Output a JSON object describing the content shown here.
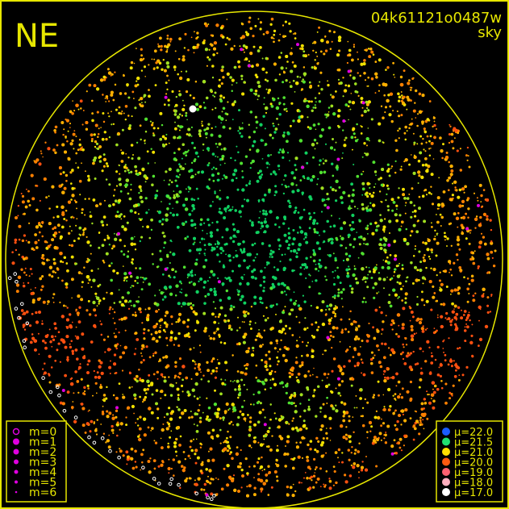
{
  "corner_label": "NE",
  "image_id": "04k61121o0487w",
  "image_type": "sky",
  "frame_color": "#e6e600",
  "magnitude_legend": {
    "marker_color": "#e000e0",
    "items": [
      "m=0",
      "m=1",
      "m=2",
      "m=3",
      "m=4",
      "m=5",
      "m=6"
    ]
  },
  "brightness_legend": {
    "items": [
      {
        "label": "μ=22.0",
        "color": "#1a5cff"
      },
      {
        "label": "μ=21.5",
        "color": "#20e070"
      },
      {
        "label": "μ=21.0",
        "color": "#ffe000"
      },
      {
        "label": "μ=20.0",
        "color": "#ff5a10"
      },
      {
        "label": "μ=19.0",
        "color": "#ff6070"
      },
      {
        "label": "μ=18.0",
        "color": "#ffb0c0"
      },
      {
        "label": "μ=17.0",
        "color": "#ffffff"
      }
    ]
  }
}
